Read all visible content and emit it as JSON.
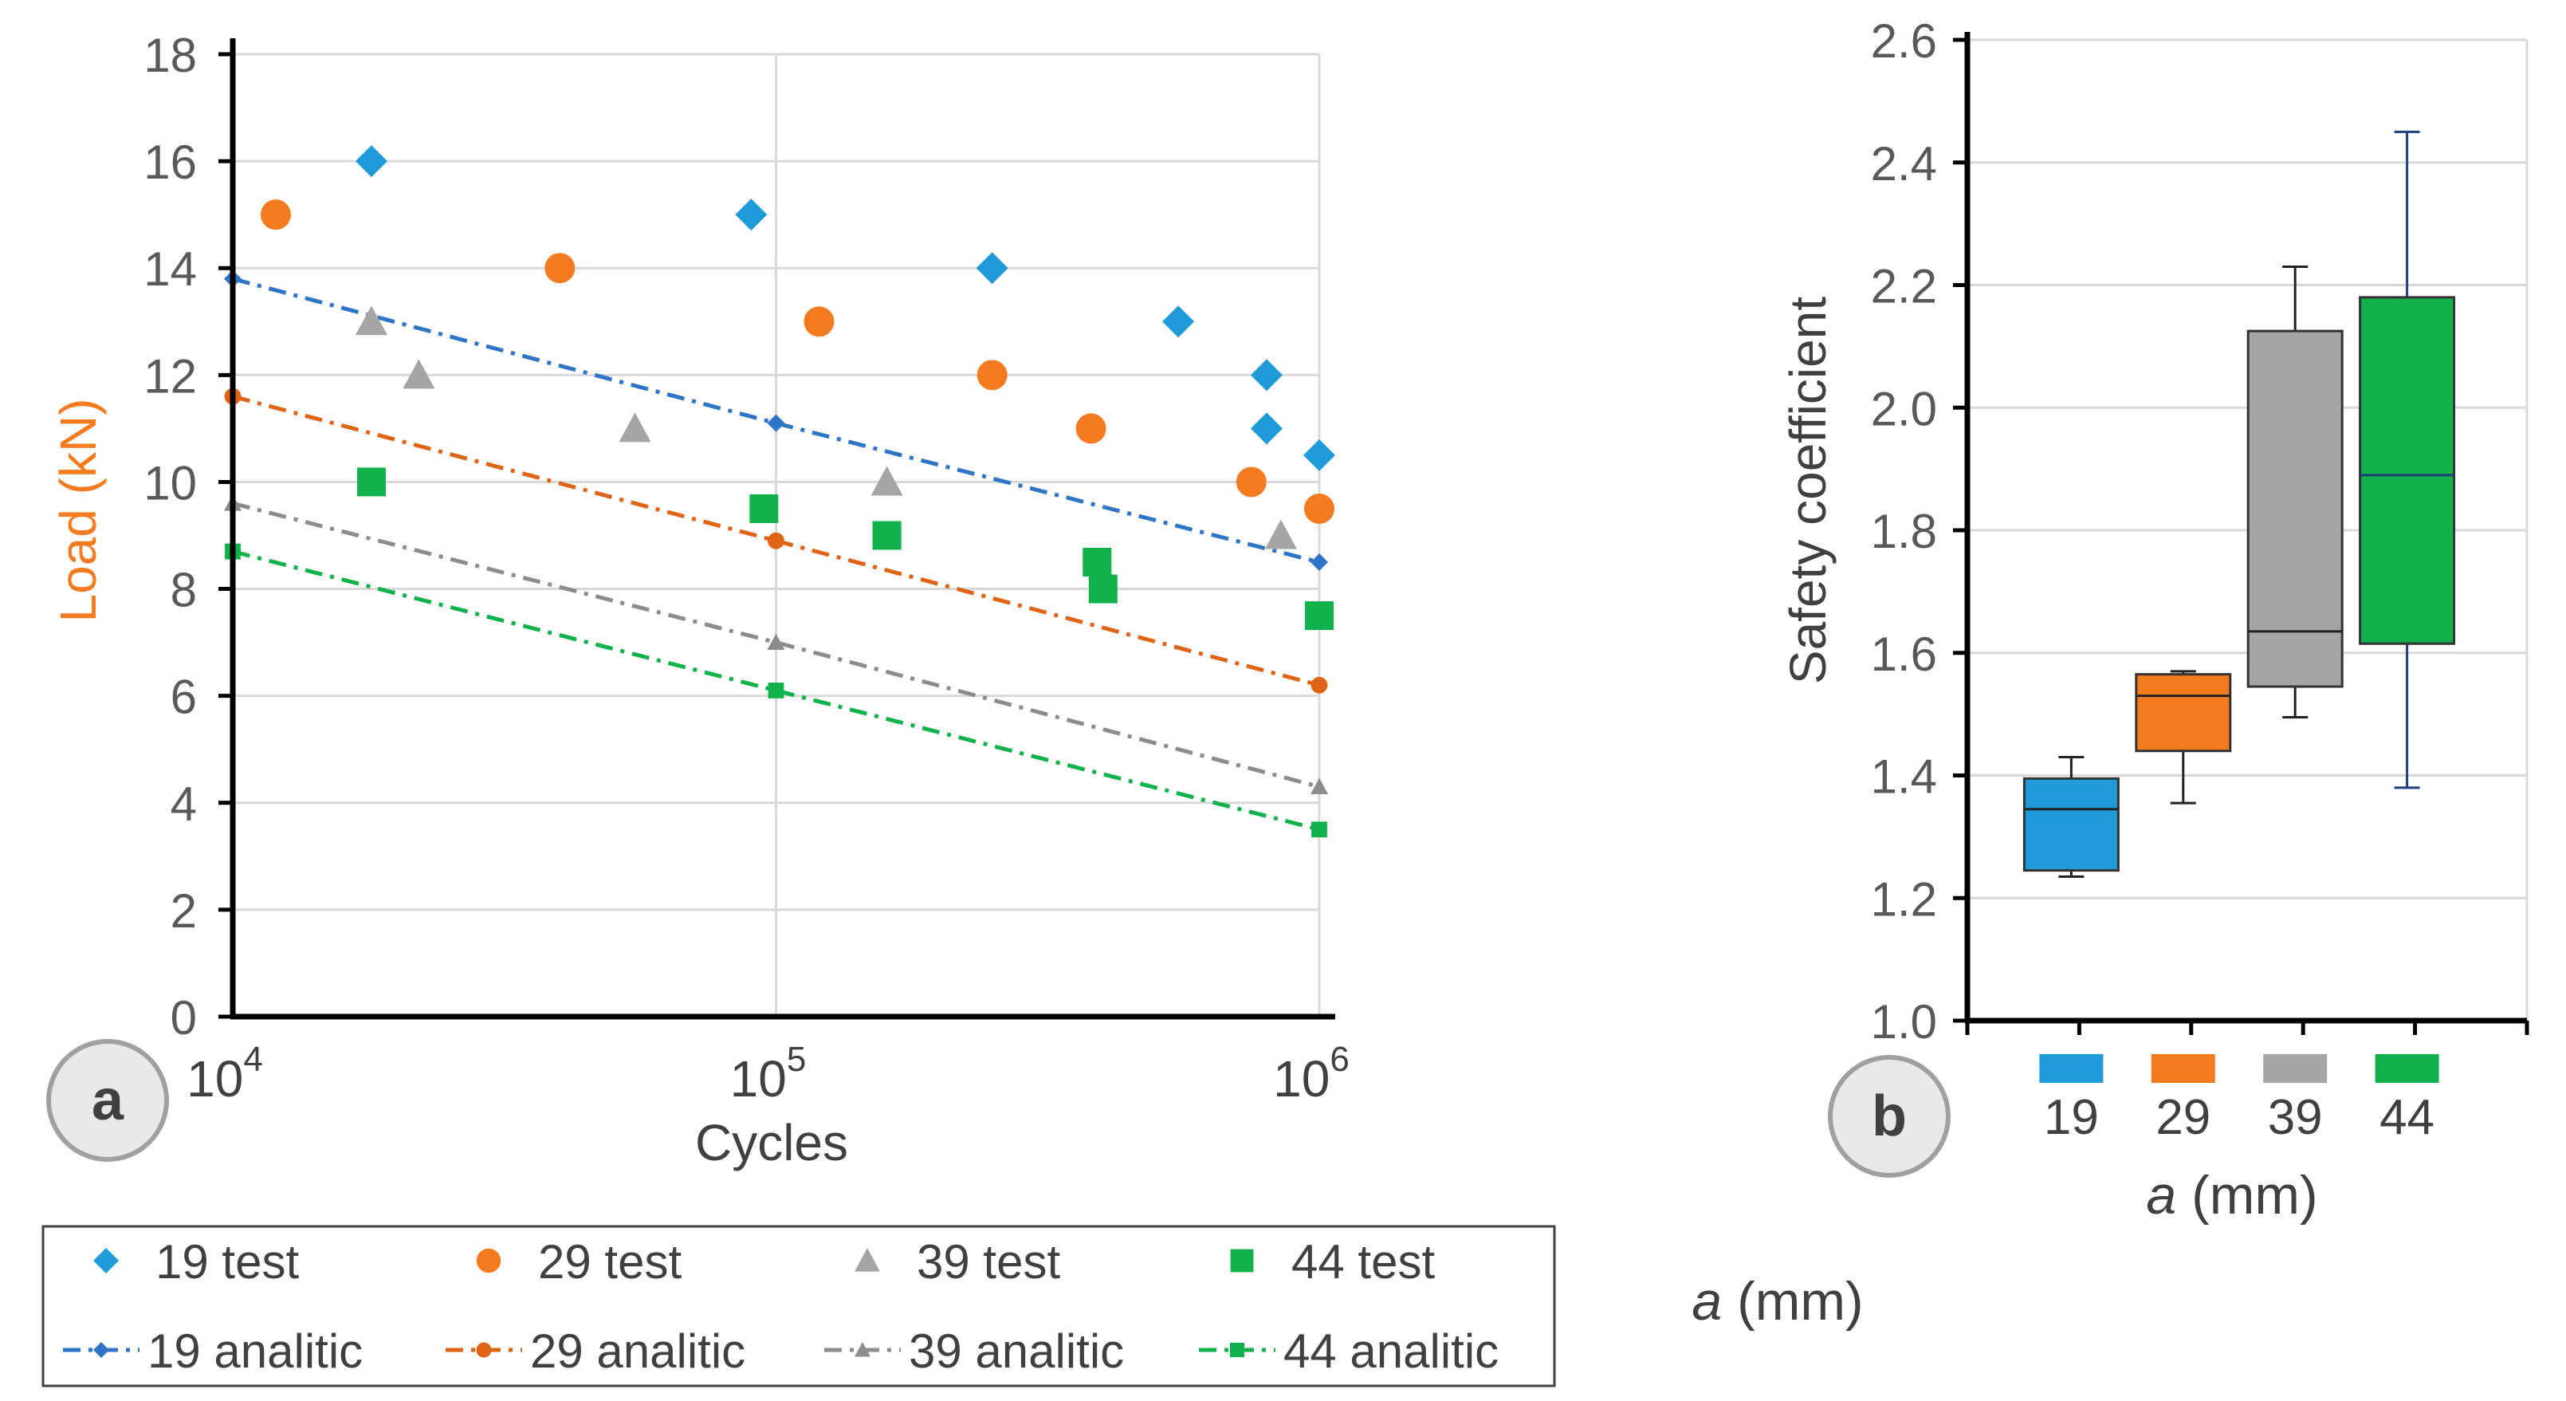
{
  "colors": {
    "blue": "#1f9bd9",
    "orange": "#f47b20",
    "gray": "#a5a5a5",
    "green": "#11b14c",
    "blue_line": "#2e75c7",
    "orange_line": "#e06416",
    "gray_line": "#8c8c8c",
    "green_line": "#11b14c",
    "axis": "#000000",
    "grid": "#d9d9d9",
    "tick_text": "#595959",
    "whisker_44": "#1f3f78"
  },
  "panel_labels": {
    "a": "a",
    "b": "b"
  },
  "chart_data": [
    {
      "type": "scatter",
      "panel": "a",
      "xlabel": "Cycles",
      "ylabel": "Load (kN)",
      "xscale": "log",
      "xlim": [
        10000,
        1000000
      ],
      "ylim": [
        0,
        18
      ],
      "x_ticks": [
        {
          "base": "10",
          "exp": "4"
        },
        {
          "base": "10",
          "exp": "5"
        },
        {
          "base": "10",
          "exp": "6"
        }
      ],
      "y_ticks": [
        "0",
        "2",
        "4",
        "6",
        "8",
        "10",
        "12",
        "14",
        "16",
        "18"
      ],
      "y_tick_values": [
        0,
        2,
        4,
        6,
        8,
        10,
        12,
        14,
        16,
        18
      ],
      "series": [
        {
          "name": "19 test",
          "kind": "test",
          "marker": "diamond",
          "color": "#1f9bd9",
          "points": [
            [
              18000,
              16
            ],
            [
              90000,
              15
            ],
            [
              250000,
              14
            ],
            [
              550000,
              13
            ],
            [
              800000,
              12
            ],
            [
              800000,
              11
            ],
            [
              1000000,
              10.5
            ]
          ]
        },
        {
          "name": "29 test",
          "kind": "test",
          "marker": "circle",
          "color": "#f47b20",
          "points": [
            [
              12000,
              15
            ],
            [
              40000,
              14
            ],
            [
              120000,
              13
            ],
            [
              250000,
              12
            ],
            [
              380000,
              11
            ],
            [
              750000,
              10
            ],
            [
              1000000,
              9.5
            ]
          ]
        },
        {
          "name": "39 test",
          "kind": "test",
          "marker": "triangle",
          "color": "#a5a5a5",
          "points": [
            [
              18000,
              13
            ],
            [
              22000,
              12
            ],
            [
              55000,
              11
            ],
            [
              160000,
              10
            ],
            [
              850000,
              9
            ]
          ]
        },
        {
          "name": "44 test",
          "kind": "test",
          "marker": "square",
          "color": "#11b14c",
          "points": [
            [
              18000,
              10
            ],
            [
              95000,
              9.5
            ],
            [
              160000,
              9
            ],
            [
              390000,
              8.5
            ],
            [
              400000,
              8
            ],
            [
              1000000,
              7.5
            ]
          ]
        },
        {
          "name": "19 analitic",
          "kind": "analytic",
          "marker": "diamond",
          "color": "#2e75c7",
          "points": [
            [
              10000,
              13.8
            ],
            [
              100000,
              11.1
            ],
            [
              1000000,
              8.5
            ]
          ]
        },
        {
          "name": "29 analitic",
          "kind": "analytic",
          "marker": "circle",
          "color": "#e06416",
          "points": [
            [
              10000,
              11.6
            ],
            [
              100000,
              8.9
            ],
            [
              1000000,
              6.2
            ]
          ]
        },
        {
          "name": "39 analitic",
          "kind": "analytic",
          "marker": "triangle",
          "color": "#8c8c8c",
          "points": [
            [
              10000,
              9.6
            ],
            [
              100000,
              7.0
            ],
            [
              1000000,
              4.3
            ]
          ]
        },
        {
          "name": "44 analitic",
          "kind": "analytic",
          "marker": "square",
          "color": "#11b14c",
          "points": [
            [
              10000,
              8.7
            ],
            [
              100000,
              6.1
            ],
            [
              1000000,
              3.5
            ]
          ]
        }
      ]
    },
    {
      "type": "box",
      "panel": "b",
      "title": "",
      "xlabel_italic": "a",
      "xlabel_rest": " (mm)",
      "ylabel": "Safety coefficient",
      "ylim": [
        1.0,
        2.6
      ],
      "y_ticks": [
        "1.0",
        "1.2",
        "1.4",
        "1.6",
        "1.8",
        "2.0",
        "2.2",
        "2.4",
        "2.6"
      ],
      "y_tick_values": [
        1.0,
        1.2,
        1.4,
        1.6,
        1.8,
        2.0,
        2.2,
        2.4,
        2.6
      ],
      "categories": [
        "19",
        "29",
        "39",
        "44"
      ],
      "boxes": [
        {
          "name": "19",
          "color": "#1f9bd9",
          "min": 1.235,
          "q1": 1.245,
          "median": 1.345,
          "q3": 1.395,
          "max": 1.43
        },
        {
          "name": "29",
          "color": "#f47b20",
          "min": 1.355,
          "q1": 1.44,
          "median": 1.53,
          "q3": 1.565,
          "max": 1.57
        },
        {
          "name": "39",
          "color": "#a5a5a5",
          "min": 1.495,
          "q1": 1.545,
          "median": 1.635,
          "q3": 2.125,
          "max": 2.23
        },
        {
          "name": "44",
          "color": "#11b14c",
          "min": 1.38,
          "q1": 1.615,
          "median": 1.89,
          "q3": 2.18,
          "max": 2.45
        }
      ]
    }
  ],
  "legend": {
    "items": [
      {
        "label": "19 test",
        "marker": "diamond",
        "color": "#1f9bd9",
        "kind": "test"
      },
      {
        "label": "29 test",
        "marker": "circle",
        "color": "#f47b20",
        "kind": "test"
      },
      {
        "label": "39 test",
        "marker": "triangle",
        "color": "#a5a5a5",
        "kind": "test"
      },
      {
        "label": "44 test",
        "marker": "square",
        "color": "#11b14c",
        "kind": "test"
      },
      {
        "label": "19 analitic",
        "marker": "diamond",
        "color": "#2e75c7",
        "kind": "analytic"
      },
      {
        "label": "29 analitic",
        "marker": "circle",
        "color": "#e06416",
        "kind": "analytic"
      },
      {
        "label": "39 analitic",
        "marker": "triangle",
        "color": "#8c8c8c",
        "kind": "analytic"
      },
      {
        "label": "44 analitic",
        "marker": "square",
        "color": "#11b14c",
        "kind": "analytic"
      }
    ],
    "side_label_italic": "a",
    "side_label_rest": " (mm)"
  }
}
